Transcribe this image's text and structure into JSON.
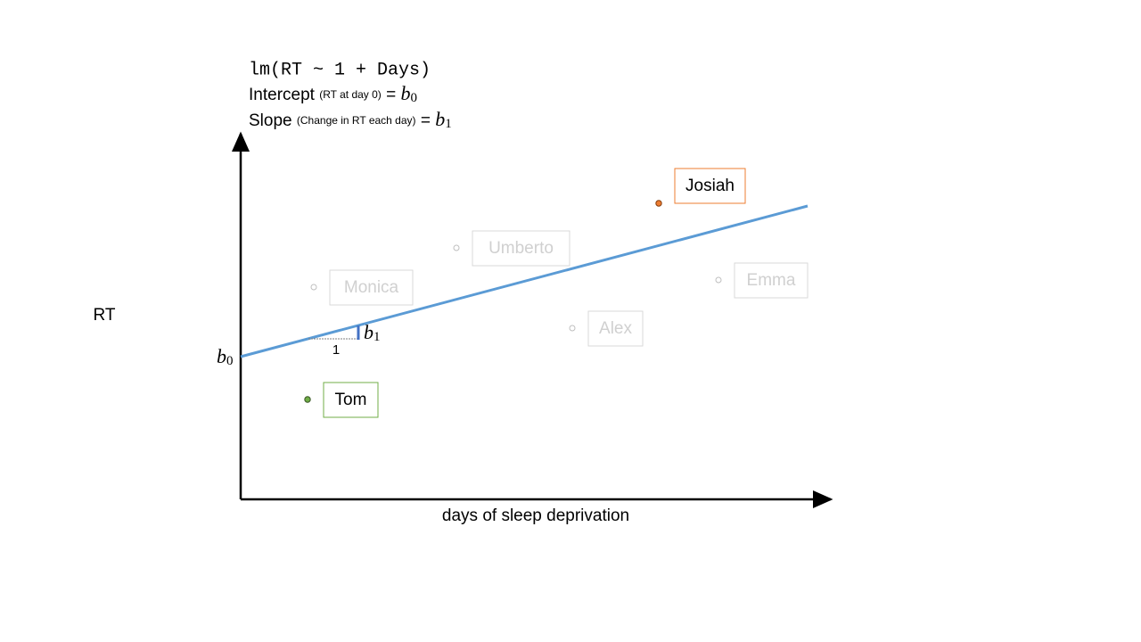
{
  "formula": "lm(RT ~ 1 + Days)",
  "intercept": {
    "label": "Intercept",
    "note": "(RT at day 0)",
    "equals": "=",
    "symbol": "b",
    "subscript": "0"
  },
  "slope": {
    "label": "Slope",
    "note": "(Change in RT each day)",
    "equals": "=",
    "symbol": "b",
    "subscript": "1"
  },
  "axes": {
    "y_label": "RT",
    "x_label": "days of sleep deprivation"
  },
  "b0_marker": {
    "symbol": "b",
    "subscript": "0"
  },
  "slope_triangle": {
    "run": "1",
    "symbol": "b",
    "subscript": "1"
  },
  "points": [
    {
      "label": "Josiah"
    },
    {
      "label": "Umberto"
    },
    {
      "label": "Monica"
    },
    {
      "label": "Emma"
    },
    {
      "label": "Alex"
    },
    {
      "label": "Tom"
    }
  ]
}
